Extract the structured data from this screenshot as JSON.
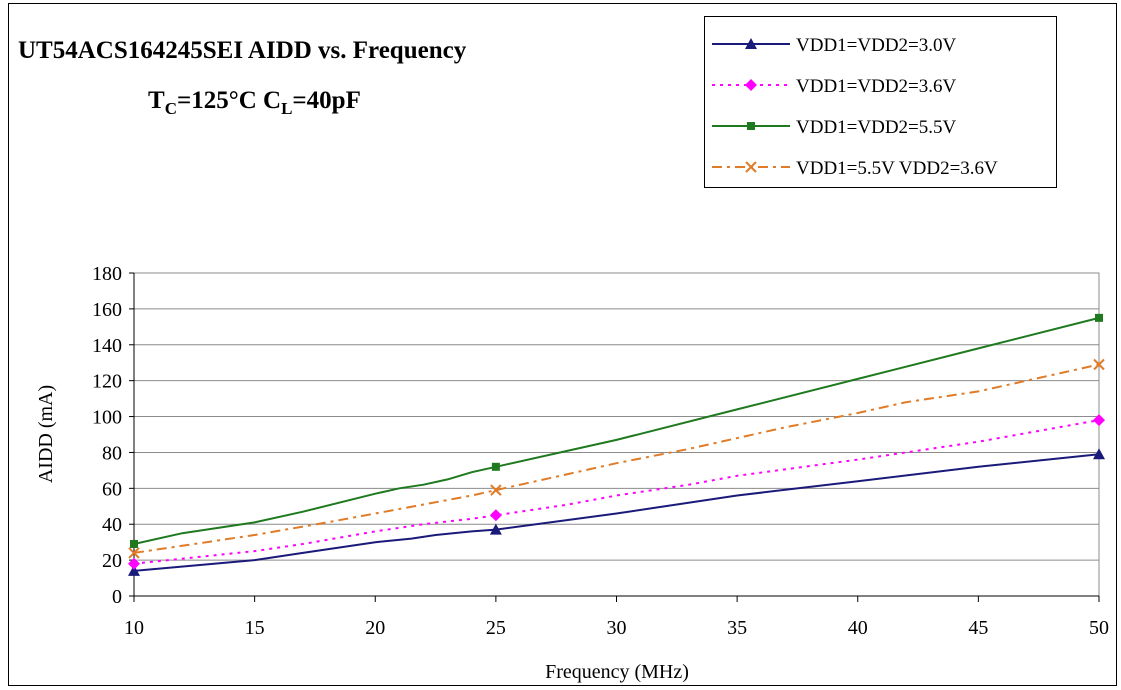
{
  "chart_data": {
    "type": "line",
    "title": "UT54ACS164245SEI AIDD vs. Frequency",
    "subtitle": {
      "tc_main": "T",
      "tc_sub": "C",
      "tc_value": "=125°C C",
      "cl_sub": "L",
      "cl_value": "=40pF"
    },
    "xlabel": "Frequency (MHz)",
    "ylabel": "AIDD (mA)",
    "xlim": [
      10,
      50
    ],
    "ylim": [
      0,
      180
    ],
    "x_ticks": [
      "10",
      "15",
      "20",
      "25",
      "30",
      "35",
      "40",
      "45",
      "50"
    ],
    "y_ticks": [
      "0",
      "20",
      "40",
      "60",
      "80",
      "100",
      "120",
      "140",
      "160",
      "180"
    ],
    "grid": "horizontal",
    "legend_position": "top-right",
    "series": [
      {
        "name": "VDD1=VDD2=3.0V",
        "color": "#1a1a7a",
        "line_style": "solid",
        "marker": "triangle",
        "points": [
          [
            10,
            14
          ],
          [
            15,
            20
          ],
          [
            17,
            24
          ],
          [
            20,
            30
          ],
          [
            21.5,
            32
          ],
          [
            22.5,
            34
          ],
          [
            24,
            36
          ],
          [
            25,
            37
          ],
          [
            30,
            46
          ],
          [
            35,
            56
          ],
          [
            40,
            64
          ],
          [
            45,
            72
          ],
          [
            50,
            79
          ]
        ]
      },
      {
        "name": "VDD1=VDD2=3.6V",
        "color": "#ff00ff",
        "line_style": "dotted",
        "marker": "diamond",
        "points": [
          [
            10,
            18
          ],
          [
            15,
            25
          ],
          [
            17,
            29
          ],
          [
            20,
            36
          ],
          [
            22,
            40
          ],
          [
            24,
            43
          ],
          [
            25,
            45
          ],
          [
            28,
            51
          ],
          [
            30,
            56
          ],
          [
            33,
            62
          ],
          [
            35,
            67
          ],
          [
            40,
            76
          ],
          [
            45,
            86
          ],
          [
            50,
            98
          ]
        ]
      },
      {
        "name": "VDD1=VDD2=5.5V",
        "color": "#1f7a1f",
        "line_style": "solid",
        "marker": "square",
        "points": [
          [
            10,
            29
          ],
          [
            12,
            35
          ],
          [
            15,
            41
          ],
          [
            17,
            47
          ],
          [
            20,
            57
          ],
          [
            21,
            60
          ],
          [
            22,
            62
          ],
          [
            23,
            65
          ],
          [
            24,
            69
          ],
          [
            25,
            72
          ],
          [
            28,
            81
          ],
          [
            30,
            87
          ],
          [
            35,
            104
          ],
          [
            40,
            121
          ],
          [
            45,
            138
          ],
          [
            50,
            155
          ]
        ]
      },
      {
        "name": "VDD1=5.5V VDD2=3.6V",
        "color": "#e07b28",
        "line_style": "dashdot",
        "marker": "x",
        "points": [
          [
            10,
            24
          ],
          [
            13,
            30
          ],
          [
            15,
            34
          ],
          [
            18,
            41
          ],
          [
            20,
            46
          ],
          [
            22,
            51
          ],
          [
            24,
            56
          ],
          [
            25,
            59
          ],
          [
            28,
            68
          ],
          [
            30,
            74
          ],
          [
            33,
            82
          ],
          [
            35,
            88
          ],
          [
            37,
            94
          ],
          [
            40,
            102
          ],
          [
            42,
            108
          ],
          [
            45,
            114
          ],
          [
            48,
            123
          ],
          [
            50,
            129
          ]
        ]
      }
    ]
  }
}
